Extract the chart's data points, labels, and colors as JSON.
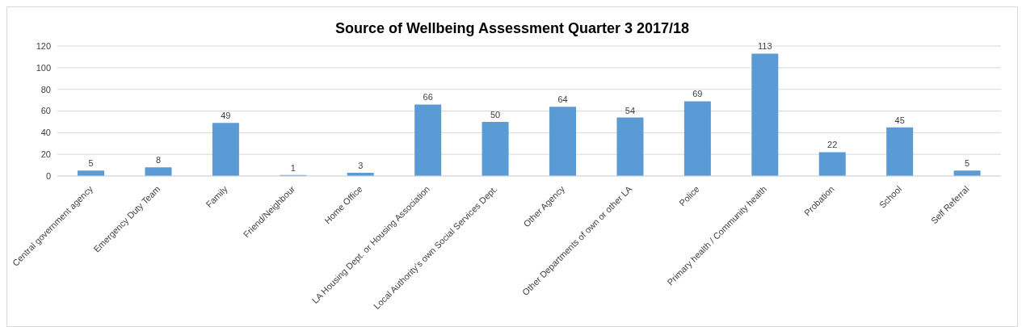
{
  "chart_data": {
    "type": "bar",
    "title": "Source of Wellbeing Assessment Quarter 3 2017/18",
    "categories": [
      "Central government agency",
      "Emergency Duty Team",
      "Family",
      "Friend/Neighbour",
      "Home Office",
      "LA Housing Dept. or Housing Association",
      "Local Authority’s own Social Services Dept.",
      "Other Agency",
      "Other Departments of own or other LA",
      "Police",
      "Primary health / Community health",
      "Probation",
      "School",
      "Self Referral"
    ],
    "values": [
      5,
      8,
      49,
      1,
      3,
      66,
      50,
      64,
      54,
      69,
      113,
      22,
      45,
      5
    ],
    "color": "#5b9bd5",
    "ylim": [
      0,
      120
    ],
    "yticks": [
      0,
      20,
      40,
      60,
      80,
      100,
      120
    ],
    "grid": "y",
    "data_labels": true,
    "legend": false
  }
}
